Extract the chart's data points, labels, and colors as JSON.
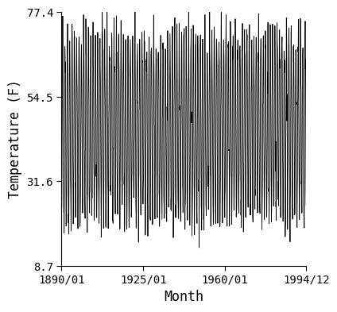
{
  "title": "",
  "xlabel": "Month",
  "ylabel": "Temperature (F)",
  "x_start_year": 1890,
  "x_start_month": 1,
  "x_end_year": 1994,
  "x_end_month": 12,
  "yticks": [
    8.7,
    31.6,
    54.5,
    77.4
  ],
  "xtick_labels": [
    "1890/01",
    "1925/01",
    "1960/01",
    "1994/12"
  ],
  "xtick_years": [
    1890,
    1925,
    1960,
    1994
  ],
  "xtick_months": [
    1,
    1,
    1,
    12
  ],
  "ylim": [
    8.7,
    77.4
  ],
  "line_color": "#000000",
  "line_width": 0.6,
  "mean_temp": 46.0,
  "amplitude": 24.0,
  "noise_std": 4.0,
  "background_color": "#ffffff",
  "font_family": "monospace",
  "tick_labelsize": 10,
  "label_fontsize": 12
}
